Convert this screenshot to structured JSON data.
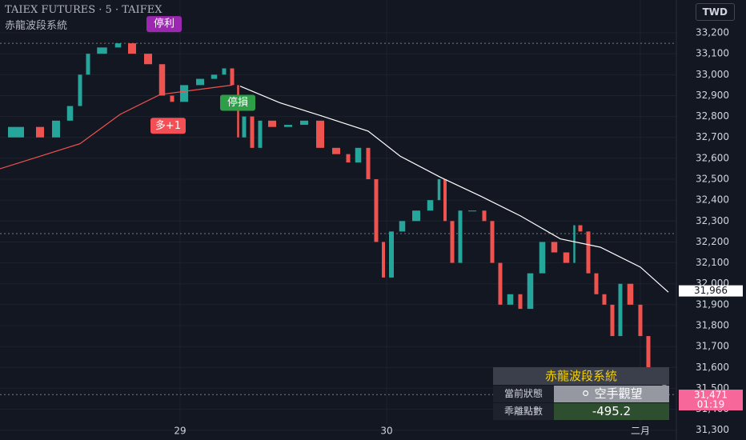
{
  "header": {
    "symbol": "TAIEX FUTURES · 5 · TAIFEX",
    "indicator": "赤龍波段系統",
    "currency": "TWD"
  },
  "chart_data": {
    "type": "candlestick",
    "x": [
      0,
      40,
      60,
      80,
      95,
      105,
      115,
      140,
      155,
      175,
      195,
      210,
      220,
      240,
      260,
      275,
      285,
      295,
      300,
      310,
      320,
      330,
      350,
      370,
      390,
      410,
      430,
      440,
      455,
      465,
      475,
      483,
      495,
      510,
      530,
      545,
      552,
      560,
      570,
      580,
      600,
      610,
      620,
      630,
      645,
      655,
      670,
      685,
      700,
      715,
      720,
      730,
      740,
      750,
      760,
      770,
      780,
      795,
      805,
      815,
      825,
      835
    ],
    "series": [
      {
        "values": [
          32700,
          32750,
          32700,
          32780,
          32850,
          33000,
          33100,
          33130,
          33150,
          33100,
          33050,
          32900,
          32870,
          32950,
          32980,
          33000,
          33030,
          32950,
          32700,
          32800,
          32650,
          32780,
          32750,
          32760,
          32780,
          32650,
          32620,
          32580,
          32650,
          32500,
          32200,
          32030,
          32250,
          32300,
          32350,
          32400,
          32500,
          32300,
          32100,
          32350,
          32350,
          32300,
          32100,
          31900,
          31950,
          31880,
          32050,
          32200,
          32150,
          32100,
          32280,
          32250,
          32050,
          31950,
          31900,
          31750,
          32000,
          31900,
          31750,
          31600,
          31550,
          31480
        ],
        "up_color": "#26a69a",
        "down_color": "#ef5350"
      }
    ],
    "lines": [
      {
        "x": [
          0,
          50,
          100,
          150,
          200,
          250,
          290
        ],
        "values": [
          32550,
          32610,
          32670,
          32810,
          32905,
          32930,
          32950
        ],
        "color": "#ef5350"
      },
      {
        "x": [
          300,
          350,
          400,
          460,
          500,
          550,
          600,
          650,
          700,
          750,
          800,
          835
        ],
        "values": [
          32945,
          32865,
          32805,
          32730,
          32610,
          32510,
          32420,
          32325,
          32215,
          32175,
          32080,
          31960
        ],
        "color": "#ffffff"
      }
    ],
    "reference_lines": [
      33150,
      32240,
      31470
    ],
    "annotations": [
      {
        "text": "停利",
        "x": 205,
        "y": 33150,
        "color": "#9c27b0"
      },
      {
        "text": "多+1",
        "x": 210,
        "y": 32870,
        "color": "#f44f55"
      },
      {
        "text": "停損",
        "x": 297,
        "y": 32980,
        "color": "#2e9e48"
      }
    ],
    "price_labels": [
      {
        "value": 31966,
        "label": "31,966",
        "color": "#ffffff"
      },
      {
        "value": 31471,
        "label": "31,471",
        "sub": "01:19",
        "color": "#f7679a"
      }
    ],
    "xlim": [
      0,
      845
    ],
    "xticks": [
      {
        "value": 225,
        "label": "29"
      },
      {
        "value": 483,
        "label": "30"
      },
      {
        "value": 800,
        "label": "二月"
      }
    ],
    "ylim": [
      31253,
      33357
    ],
    "yticks": [
      {
        "value": 31300,
        "label": "31,300"
      },
      {
        "value": 31400,
        "label": "31,400"
      },
      {
        "value": 31500,
        "label": "31,500"
      },
      {
        "value": 31600,
        "label": "31,600"
      },
      {
        "value": 31700,
        "label": "31,700"
      },
      {
        "value": 31800,
        "label": "31,800"
      },
      {
        "value": 31900,
        "label": "31,900"
      },
      {
        "value": 32000,
        "label": "32,000"
      },
      {
        "value": 32100,
        "label": "32,100"
      },
      {
        "value": 32200,
        "label": "32,200"
      },
      {
        "value": 32300,
        "label": "32,300"
      },
      {
        "value": 32400,
        "label": "32,400"
      },
      {
        "value": 32500,
        "label": "32,500"
      },
      {
        "value": 32600,
        "label": "32,600"
      },
      {
        "value": 32700,
        "label": "32,700"
      },
      {
        "value": 32800,
        "label": "32,800"
      },
      {
        "value": 32900,
        "label": "32,900"
      },
      {
        "value": 33000,
        "label": "33,000"
      },
      {
        "value": 33100,
        "label": "33,100"
      },
      {
        "value": 33200,
        "label": "33,200"
      }
    ],
    "grid": true
  },
  "panel": {
    "title": "赤龍波段系統",
    "rows": [
      [
        "當前狀態",
        "空手觀望"
      ],
      [
        "乖離點數",
        "-495.2"
      ]
    ]
  }
}
